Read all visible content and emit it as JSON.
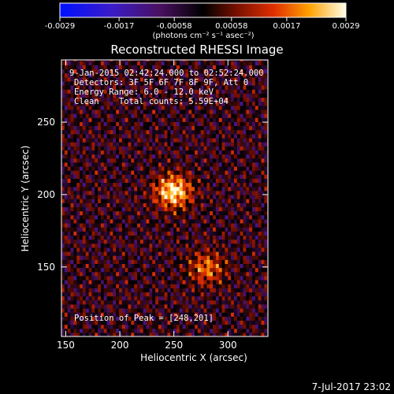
{
  "chart_data": {
    "type": "heatmap",
    "title": "Reconstructed RHESSI Image",
    "xlabel": "Heliocentric X (arcsec)",
    "ylabel": "Heliocentric Y (arcsec)",
    "xlim": [
      146,
      337
    ],
    "ylim": [
      102,
      293
    ],
    "xticks": [
      150,
      200,
      250,
      300
    ],
    "yticks": [
      150,
      200,
      250
    ],
    "colorbar": {
      "min": -0.0029,
      "max": 0.0029,
      "colormap": "blue-purple-black-red-orange-yellow-white",
      "tick_labels": [
        "-0.0029",
        "-0.0017",
        "-0.00058",
        "0.00058",
        "0.0017",
        "0.0029"
      ],
      "unit_label": "(photons cm⁻² s⁻¹ asec⁻²)"
    },
    "annotation": {
      "time_range": "9-Jan-2015 02:42:24.000 to 02:52:24.000",
      "detectors": "Detectors: 3F 5F 6F 7F 8F 9F, Att 0",
      "energy": "Energy Range: 6.0 - 12.0 keV",
      "clean": "Clean    Total counts: 5.59E+04"
    },
    "peak_label": "Position of Peak = [248,201]",
    "sources": [
      {
        "x": 248,
        "y": 201,
        "amplitude": 0.0029
      },
      {
        "x": 279,
        "y": 148,
        "amplitude": 0.0017
      }
    ],
    "footer_date": "7-Jul-2017 23:02"
  }
}
